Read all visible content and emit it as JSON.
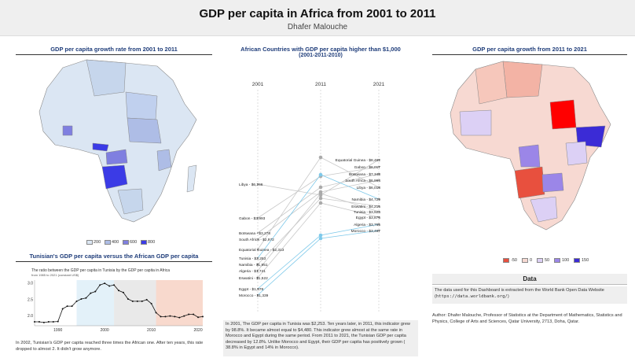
{
  "header": {
    "title": "GDP per capita in Africa from 2001 to 2011",
    "author": "Dhafer Malouche"
  },
  "panels": {
    "growth_2001_2011": "GDP per capita growth rate from 2001 to 2011",
    "higher_than": "African Countries with GDP per capita higher than $1,000",
    "higher_than_sub": "(2001-2011-2010)",
    "growth_2011_2021": "GDP per capita growth from 2011 to 2021",
    "tunisia_vs_africa": "Tunisian's GDP per capita versus the African GDP per capita",
    "data": "Data"
  },
  "map_left_legend": [
    {
      "label": "200",
      "color": "#dbe6f3"
    },
    {
      "label": "400",
      "color": "#aebde6"
    },
    {
      "label": "600",
      "color": "#7f7fe0"
    },
    {
      "label": "800",
      "color": "#3b3be6"
    }
  ],
  "map_right_legend": [
    {
      "label": "-50",
      "color": "#e8503e"
    },
    {
      "label": "0",
      "color": "#f7d9d2"
    },
    {
      "label": "50",
      "color": "#dcd0f5"
    },
    {
      "label": "100",
      "color": "#9b86e8"
    },
    {
      "label": "150",
      "color": "#3b2bd6"
    }
  ],
  "slope_chart": {
    "years": [
      "2001",
      "2011",
      "2021"
    ],
    "left_labels": [
      "Libya - $6,266",
      "Gabon - $3,993",
      "Botswana - $3,278",
      "South Africa - $2,972",
      "Equatorial Guinea - $2,313",
      "Tunisia - $2,253",
      "Namibia - $1,951",
      "Algeria - $1,741",
      "Eswatini - $1,522",
      "Egypt - $1,378",
      "Morocco - $1,339"
    ],
    "right_labels": [
      "Equatorial Guinea - $8,462",
      "Gabon - $8,017",
      "Botswana - $7,348",
      "South Africa - $6,994",
      "Libya - $6,018",
      "Namibia - $4,729",
      "Eswatini - $4,215",
      "Tunisia - $3,924",
      "Egypt - $3,876",
      "Algeria - $3,765",
      "Morocco - $3,497"
    ]
  },
  "chart_data": {
    "type": "line",
    "title": "The ratio between the GDP per capita in Tunisia by the GDP per capita in Africa",
    "subtitle": "from 1985 to 2021 (constant US$)",
    "x": [
      1985,
      1986,
      1987,
      1988,
      1989,
      1990,
      1991,
      1992,
      1993,
      1994,
      1995,
      1996,
      1997,
      1998,
      1999,
      2000,
      2001,
      2002,
      2003,
      2004,
      2005,
      2006,
      2007,
      2008,
      2009,
      2010,
      2011,
      2012,
      2013,
      2014,
      2015,
      2016,
      2017,
      2018,
      2019,
      2020,
      2021
    ],
    "series": [
      {
        "values": [
          1.82,
          1.82,
          1.8,
          1.82,
          1.82,
          1.83,
          2.22,
          2.3,
          2.3,
          2.45,
          2.52,
          2.55,
          2.7,
          2.75,
          2.95,
          3.0,
          2.92,
          2.95,
          2.78,
          2.72,
          2.52,
          2.45,
          2.45,
          2.45,
          2.5,
          2.38,
          2.1,
          1.98,
          1.98,
          2.0,
          1.98,
          1.95,
          2.0,
          2.05,
          2.05,
          1.96,
          1.98
        ]
      }
    ],
    "xticks": [
      "1990",
      "2000",
      "2010",
      "2020"
    ],
    "yticks": [
      "2.0",
      "2.5",
      "3.0"
    ],
    "ylim": [
      1.7,
      3.1
    ]
  },
  "notes": {
    "tunisia": "In 2002, Tunisian's GDP per capita reached three times the African one. After ten years, this rate dropped to almost 2. It didn't grow anymore.",
    "slope": "In 2001, The GDP per capita in Tunisia was $2,253. Ten years later, in 2011, this indicator grew by 98.8%. It became almost equal to $4,480. This indicator grew almost at the same rate in Morocco and Egypt during the same period. From 2011 to 2021, the Tunisian GDP per capita decreased by 12.8%. Unlike Morocco and Egypt, their GDP per capita has positively grown ( 38.8% in Egypt and 14% in Morocco).",
    "data_text": "The data used for this Dashboard is extracted from the World Bank Open Data Website (",
    "data_url": "https://data.worldbank.org/",
    "data_end": ")",
    "author": "Author: Dhafer Malouche, Professor of Statistics at the Department of Mathematics, Statistics and Physics, College of Arts and Sciences, Qatar University, 2713, Doha, Qatar."
  }
}
